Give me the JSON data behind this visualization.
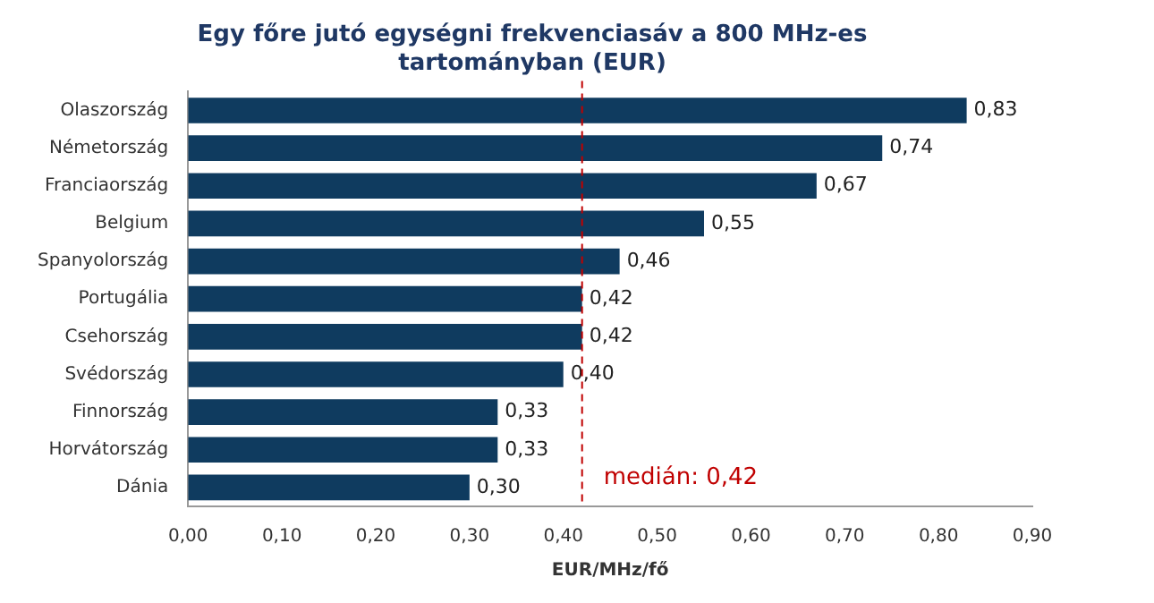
{
  "chart_data": {
    "type": "bar",
    "orientation": "horizontal",
    "title": "Egy főre jutó egységni frekvenciasáv a 800 MHz-es\ntartományban (EUR)",
    "xlabel": "EUR/MHz/fő",
    "categories": [
      "Olaszország",
      "Németország",
      "Franciaország",
      "Belgium",
      "Spanyolország",
      "Portugália",
      "Csehország",
      "Svédország",
      "Finnország",
      "Horvátország",
      "Dánia"
    ],
    "values": [
      0.83,
      0.74,
      0.67,
      0.55,
      0.46,
      0.42,
      0.42,
      0.4,
      0.33,
      0.33,
      0.3
    ],
    "value_labels": [
      "0,83",
      "0,74",
      "0,67",
      "0,55",
      "0,46",
      "0,42",
      "0,42",
      "0,40",
      "0,33",
      "0,33",
      "0,30"
    ],
    "color": "#0f3b5f",
    "xlim": [
      0,
      0.9
    ],
    "xticks": [
      {
        "value": 0,
        "label": "0,00"
      },
      {
        "value": 0.1,
        "label": "0,10"
      },
      {
        "value": 0.2,
        "label": "0,20"
      },
      {
        "value": 0.3,
        "label": "0,30"
      },
      {
        "value": 0.4,
        "label": "0,40"
      },
      {
        "value": 0.5,
        "label": "0,50"
      },
      {
        "value": 0.6,
        "label": "0,60"
      },
      {
        "value": 0.7,
        "label": "0,70"
      },
      {
        "value": 0.8,
        "label": "0,80"
      },
      {
        "value": 0.9,
        "label": "0,90"
      }
    ],
    "ref_lines": [
      {
        "axis": "x",
        "value": 0.42,
        "label": "medián: 0,42",
        "color": "#c00000",
        "line_style": "dashed"
      }
    ],
    "grid": false,
    "legend": false
  }
}
